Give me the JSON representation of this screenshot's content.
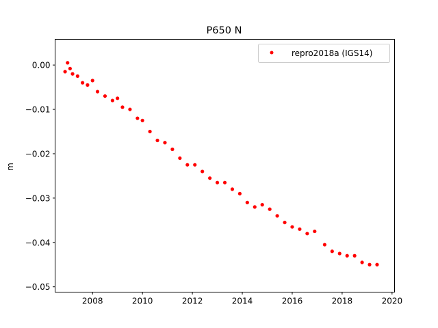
{
  "chart_data": {
    "type": "scatter",
    "title": "P650 N",
    "xlabel": "",
    "ylabel": "m",
    "xlim": [
      2006.5,
      2020.1
    ],
    "ylim": [
      -0.0512,
      0.0058
    ],
    "xticks": [
      2008,
      2010,
      2012,
      2014,
      2016,
      2018,
      2020
    ],
    "xtick_labels": [
      "2008",
      "2010",
      "2012",
      "2014",
      "2016",
      "2018",
      "2020"
    ],
    "yticks": [
      0.0,
      -0.01,
      -0.02,
      -0.03,
      -0.04,
      -0.05
    ],
    "ytick_labels": [
      "0.00",
      "−0.01",
      "−0.02",
      "−0.03",
      "−0.04",
      "−0.05"
    ],
    "legend": {
      "position": "top-right",
      "entries": [
        "repro2018a (IGS14)"
      ]
    },
    "grid": false,
    "series": [
      {
        "name": "repro2018a (IGS14)",
        "color": "#ff0000",
        "marker": "circle",
        "x": [
          2006.9,
          2007.0,
          2007.1,
          2007.2,
          2007.4,
          2007.6,
          2007.8,
          2008.0,
          2008.2,
          2008.5,
          2008.8,
          2009.0,
          2009.2,
          2009.5,
          2009.8,
          2010.0,
          2010.3,
          2010.6,
          2010.9,
          2011.2,
          2011.5,
          2011.8,
          2012.1,
          2012.4,
          2012.7,
          2013.0,
          2013.3,
          2013.6,
          2013.9,
          2014.2,
          2014.5,
          2014.8,
          2015.1,
          2015.4,
          2015.7,
          2016.0,
          2016.3,
          2016.6,
          2016.9,
          2017.3,
          2017.6,
          2017.9,
          2018.2,
          2018.5,
          2018.8,
          2019.1,
          2019.4
        ],
        "y": [
          -0.0015,
          0.0005,
          -0.0008,
          -0.002,
          -0.0025,
          -0.004,
          -0.0045,
          -0.0035,
          -0.006,
          -0.007,
          -0.008,
          -0.0075,
          -0.0095,
          -0.01,
          -0.012,
          -0.0125,
          -0.015,
          -0.017,
          -0.0175,
          -0.019,
          -0.021,
          -0.0225,
          -0.0225,
          -0.024,
          -0.0255,
          -0.0265,
          -0.0265,
          -0.028,
          -0.029,
          -0.031,
          -0.032,
          -0.0315,
          -0.0325,
          -0.034,
          -0.0355,
          -0.0365,
          -0.037,
          -0.038,
          -0.0375,
          -0.0405,
          -0.042,
          -0.0425,
          -0.043,
          -0.043,
          -0.0445,
          -0.045,
          -0.045
        ]
      }
    ]
  }
}
